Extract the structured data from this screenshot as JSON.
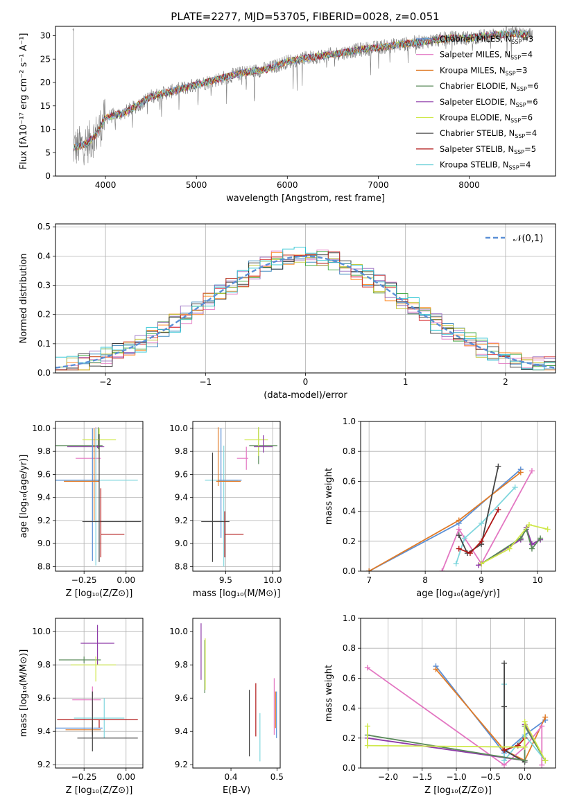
{
  "figure_title": "PLATE=2277, MJD=53705, FIBERID=0028, z=0.051",
  "colors": [
    "#1f77b4",
    "#e377c2",
    "#ff7f0e",
    "#2ca02c",
    "#9467bd",
    "#bcbd22",
    "#222222",
    "#d62728",
    "#17becf"
  ],
  "chart_data": [
    {
      "id": "spectrum",
      "type": "line",
      "xlabel": "wavelength [Angstrom, rest frame]",
      "ylabel": "Flux [fλ10⁻¹⁷ erg cm⁻² s⁻¹ A⁻¹]",
      "xlim": [
        3450,
        8950
      ],
      "ylim": [
        0,
        32
      ],
      "xticks": [
        4000,
        5000,
        6000,
        7000,
        8000
      ],
      "yticks": [
        0,
        5,
        10,
        15,
        20,
        25,
        30
      ],
      "legend_position": "top-right",
      "legend": [
        {
          "label": "Chabrier MILES, N",
          "sub": "SSP",
          "tail": "=3",
          "color": "#5a8fd6"
        },
        {
          "label": "Salpeter MILES, N",
          "sub": "SSP",
          "tail": "=4",
          "color": "#e377c2"
        },
        {
          "label": "Kroupa MILES, N",
          "sub": "SSP",
          "tail": "=3",
          "color": "#e07b28"
        },
        {
          "label": "Chabrier ELODIE, N",
          "sub": "SSP",
          "tail": "=6",
          "color": "#5a8a5a"
        },
        {
          "label": "Salpeter ELODIE, N",
          "sub": "SSP",
          "tail": "=6",
          "color": "#8e3aa8"
        },
        {
          "label": "Kroupa ELODIE, N",
          "sub": "SSP",
          "tail": "=6",
          "color": "#cfe84a"
        },
        {
          "label": "Chabrier STELIB, N",
          "sub": "SSP",
          "tail": "=4",
          "color": "#444444"
        },
        {
          "label": "Salpeter STELIB, N",
          "sub": "SSP",
          "tail": "=5",
          "color": "#b01515"
        },
        {
          "label": "Kroupa STELIB, N",
          "sub": "SSP",
          "tail": "=4",
          "color": "#7fd6dd"
        }
      ],
      "continuum": [
        [
          3650,
          6
        ],
        [
          3800,
          7
        ],
        [
          3900,
          9
        ],
        [
          4000,
          12.5
        ],
        [
          4200,
          13.5
        ],
        [
          4300,
          14.5
        ],
        [
          4500,
          17
        ],
        [
          4800,
          18.5
        ],
        [
          5000,
          19.5
        ],
        [
          5200,
          20.5
        ],
        [
          5500,
          22
        ],
        [
          5800,
          23
        ],
        [
          6000,
          24.5
        ],
        [
          6300,
          25.5
        ],
        [
          6500,
          26
        ],
        [
          6800,
          27
        ],
        [
          7000,
          27.5
        ],
        [
          7200,
          28
        ],
        [
          7400,
          28.5
        ],
        [
          7600,
          29
        ],
        [
          7800,
          29.5
        ],
        [
          8000,
          29.5
        ],
        [
          8200,
          30
        ],
        [
          8500,
          30.5
        ],
        [
          8700,
          30
        ]
      ]
    },
    {
      "id": "residual_hist",
      "type": "histogram",
      "xlabel": "(data-model)/error",
      "ylabel": "Normed distribution",
      "xlim": [
        -2.5,
        2.5
      ],
      "ylim": [
        0,
        0.51
      ],
      "xticks": [
        -2,
        -1,
        0,
        1,
        2
      ],
      "yticks": [
        0.0,
        0.1,
        0.2,
        0.3,
        0.4,
        0.5
      ],
      "grid": true,
      "legend_position": "top-right",
      "reference_curve": {
        "label": "𝒩(0,1)",
        "mean": 0,
        "sigma": 1
      }
    },
    {
      "id": "age_vs_Z",
      "type": "errorbar",
      "xlabel": "Z [log₁₀(Z/Z⊙)]",
      "ylabel": "age  [log₁₀(age/yr)]",
      "xlim": [
        -0.42,
        0.1
      ],
      "ylim": [
        8.76,
        10.06
      ],
      "xticks": [
        -0.25,
        0.0
      ],
      "yticks": [
        8.8,
        9.0,
        9.2,
        9.4,
        9.6,
        9.8,
        10.0
      ],
      "grid": true,
      "points": [
        {
          "x": -0.165,
          "x_err": [
            0.255,
            0.025
          ],
          "y": 9.85,
          "y_err": [
            0.03,
            0.16
          ],
          "color": "#5a8a5a"
        },
        {
          "x": -0.16,
          "x_err": [
            0.1,
            0.1
          ],
          "y": 9.9,
          "y_err": [
            0.2,
            0.1
          ],
          "color": "#cfe84a"
        },
        {
          "x": -0.17,
          "x_err": [
            0.18,
            0.04
          ],
          "y": 9.84,
          "y_err": [
            0.01,
            0.01
          ],
          "color": "#8e3aa8"
        },
        {
          "x": -0.18,
          "x_err": [
            0.12,
            0.03
          ],
          "y": 9.74,
          "y_err": [
            0.21,
            0.27
          ],
          "color": "#e377c2"
        },
        {
          "x": -0.18,
          "x_err": [
            0.26,
            0.25
          ],
          "y": 9.55,
          "y_err": [
            0.74,
            0.45
          ],
          "color": "#7fd6dd"
        },
        {
          "x": -0.2,
          "x_err": [
            0.24,
            0.04
          ],
          "y": 9.55,
          "y_err": [
            0.7,
            0.45
          ],
          "color": "#5a8fd6"
        },
        {
          "x": -0.19,
          "x_err": [
            0.18,
            0.03
          ],
          "y": 9.54,
          "y_err": [
            0.34,
            0.46
          ],
          "color": "#e07b28"
        },
        {
          "x": -0.16,
          "x_err": [
            0.1,
            0.25
          ],
          "y": 9.19,
          "y_err": [
            0.35,
            0.76
          ],
          "color": "#444444"
        },
        {
          "x": -0.15,
          "x_err": [
            0.0,
            0.14
          ],
          "y": 9.08,
          "y_err": [
            0.2,
            0.4
          ],
          "color": "#b01515"
        }
      ]
    },
    {
      "id": "age_vs_mass",
      "type": "errorbar",
      "xlabel": "mass [log₁₀(M/M⊙)]",
      "ylabel": "",
      "xlim": [
        9.15,
        10.08
      ],
      "ylim": [
        8.76,
        10.06
      ],
      "xticks": [
        9.5,
        10.0
      ],
      "yticks": [
        8.8,
        9.0,
        9.2,
        9.4,
        9.6,
        9.8,
        10.0
      ],
      "grid": true,
      "points": [
        {
          "x": 9.85,
          "x_err": [
            0.1,
            0.2
          ],
          "y": 9.85,
          "y_err": [
            0.16,
            0.16
          ],
          "color": "#5a8a5a"
        },
        {
          "x": 9.85,
          "x_err": [
            0.15,
            0.1
          ],
          "y": 9.9,
          "y_err": [
            0.14,
            0.11
          ],
          "color": "#cfe84a"
        },
        {
          "x": 9.9,
          "x_err": [
            0.1,
            0.1
          ],
          "y": 9.84,
          "y_err": [
            0.05,
            0.1
          ],
          "color": "#8e3aa8"
        },
        {
          "x": 9.72,
          "x_err": [
            0.1,
            0.02
          ],
          "y": 9.74,
          "y_err": [
            0.1,
            0.1
          ],
          "color": "#e377c2"
        },
        {
          "x": 9.48,
          "x_err": [
            0.2,
            0.15
          ],
          "y": 9.55,
          "y_err": [
            0.75,
            0.3
          ],
          "color": "#7fd6dd"
        },
        {
          "x": 9.45,
          "x_err": [
            0.03,
            0.22
          ],
          "y": 9.55,
          "y_err": [
            0.5,
            0.45
          ],
          "color": "#5a8fd6"
        },
        {
          "x": 9.42,
          "x_err": [
            0.02,
            0.24
          ],
          "y": 9.54,
          "y_err": [
            0.04,
            0.47
          ],
          "color": "#e07b28"
        },
        {
          "x": 9.36,
          "x_err": [
            0.12,
            0.18
          ],
          "y": 9.19,
          "y_err": [
            0.35,
            0.6
          ],
          "color": "#444444"
        },
        {
          "x": 9.49,
          "x_err": [
            0.0,
            0.2
          ],
          "y": 9.08,
          "y_err": [
            0.2,
            0.2
          ],
          "color": "#b01515"
        }
      ]
    },
    {
      "id": "mass_weight_vs_age",
      "type": "line",
      "xlabel": "age  [log₁₀(age/yr)]",
      "ylabel": "mass weight",
      "xlim": [
        6.85,
        10.32
      ],
      "ylim": [
        0,
        1.0
      ],
      "xticks": [
        7,
        8,
        9,
        10
      ],
      "yticks": [
        0.0,
        0.2,
        0.4,
        0.6,
        0.8,
        1.0
      ],
      "grid": true,
      "series": [
        {
          "color": "#5a8fd6",
          "x": [
            7.0,
            8.6,
            9.7
          ],
          "y": [
            0.0,
            0.32,
            0.68
          ]
        },
        {
          "color": "#e07b28",
          "x": [
            7.0,
            8.6,
            9.7
          ],
          "y": [
            0.0,
            0.34,
            0.66
          ]
        },
        {
          "color": "#e377c2",
          "x": [
            8.3,
            8.6,
            9.0,
            9.9
          ],
          "y": [
            0.0,
            0.28,
            0.05,
            0.67
          ]
        },
        {
          "color": "#7fd6dd",
          "x": [
            8.55,
            8.7,
            9.0,
            9.6
          ],
          "y": [
            0.05,
            0.22,
            0.32,
            0.56
          ]
        },
        {
          "color": "#444444",
          "x": [
            8.6,
            8.75,
            9.0,
            9.3
          ],
          "y": [
            0.24,
            0.12,
            0.18,
            0.7
          ]
        },
        {
          "color": "#b01515",
          "x": [
            8.6,
            8.8,
            9.0,
            9.3
          ],
          "y": [
            0.15,
            0.12,
            0.2,
            0.41
          ]
        },
        {
          "color": "#8e3aa8",
          "x": [
            8.95,
            9.7,
            9.8,
            9.9,
            10.05
          ],
          "y": [
            0.04,
            0.21,
            0.29,
            0.18,
            0.21
          ]
        },
        {
          "color": "#5a8a5a",
          "x": [
            9.0,
            9.7,
            9.8,
            9.9,
            10.05
          ],
          "y": [
            0.05,
            0.22,
            0.28,
            0.15,
            0.22
          ]
        },
        {
          "color": "#cfe84a",
          "x": [
            9.0,
            9.5,
            9.85,
            10.18
          ],
          "y": [
            0.05,
            0.15,
            0.31,
            0.28
          ]
        }
      ]
    },
    {
      "id": "mass_vs_Z",
      "type": "errorbar",
      "xlabel": "Z [log₁₀(Z/Z⊙)]",
      "ylabel": "mass [log₁₀(M/M⊙)]",
      "xlim": [
        -0.42,
        0.1
      ],
      "ylim": [
        9.18,
        10.08
      ],
      "xticks": [
        -0.25,
        0.0
      ],
      "yticks": [
        9.2,
        9.4,
        9.6,
        9.8,
        10.0
      ],
      "grid": true,
      "points": [
        {
          "x": -0.17,
          "x_err": [
            0.1,
            0.1
          ],
          "y": 9.93,
          "y_err": [
            0.13,
            0.11
          ],
          "color": "#8e3aa8"
        },
        {
          "x": -0.25,
          "x_err": [
            0.15,
            0.1
          ],
          "y": 9.83,
          "y_err": [
            0.02,
            0.02
          ],
          "color": "#5a8a5a"
        },
        {
          "x": -0.18,
          "x_err": [
            0.15,
            0.12
          ],
          "y": 9.8,
          "y_err": [
            0.1,
            0.05
          ],
          "color": "#cfe84a"
        },
        {
          "x": -0.2,
          "x_err": [
            0.12,
            0.05
          ],
          "y": 9.59,
          "y_err": [
            0.1,
            0.08
          ],
          "color": "#e377c2"
        },
        {
          "x": -0.13,
          "x_err": [
            0.18,
            0.12
          ],
          "y": 9.48,
          "y_err": [
            0.12,
            0.12
          ],
          "color": "#7fd6dd"
        },
        {
          "x": -0.16,
          "x_err": [
            0.25,
            0.23
          ],
          "y": 9.47,
          "y_err": [
            0.05,
            0.0
          ],
          "color": "#b01515"
        },
        {
          "x": -0.2,
          "x_err": [
            0.23,
            0.06
          ],
          "y": 9.42,
          "y_err": [
            0.05,
            0.05
          ],
          "color": "#5a8fd6"
        },
        {
          "x": -0.2,
          "x_err": [
            0.16,
            0.05
          ],
          "y": 9.41,
          "y_err": [
            0.03,
            0.06
          ],
          "color": "#e07b28"
        },
        {
          "x": -0.2,
          "x_err": [
            0.09,
            0.27
          ],
          "y": 9.36,
          "y_err": [
            0.08,
            0.28
          ],
          "color": "#444444"
        }
      ]
    },
    {
      "id": "mass_vs_EBV",
      "type": "errorbar",
      "xlabel": "E(B-V)",
      "ylabel": "",
      "xlim": [
        0.317,
        0.507
      ],
      "ylim": [
        9.18,
        10.08
      ],
      "xticks": [
        0.4,
        0.5
      ],
      "yticks": [
        9.2,
        9.4,
        9.6,
        9.8,
        10.0
      ],
      "grid": false,
      "points": [
        {
          "x": 0.335,
          "x_err": [
            0,
            0
          ],
          "y": 9.88,
          "y_err": [
            0.17,
            0.17
          ],
          "color": "#8e3aa8"
        },
        {
          "x": 0.343,
          "x_err": [
            0,
            0
          ],
          "y": 9.8,
          "y_err": [
            0.17,
            0.15
          ],
          "color": "#5a8a5a"
        },
        {
          "x": 0.344,
          "x_err": [
            0,
            0
          ],
          "y": 9.79,
          "y_err": [
            0.14,
            0.17
          ],
          "color": "#cfe84a"
        },
        {
          "x": 0.44,
          "x_err": [
            0,
            0
          ],
          "y": 9.45,
          "y_err": [
            0.2,
            0.2
          ],
          "color": "#444444"
        },
        {
          "x": 0.454,
          "x_err": [
            0,
            0
          ],
          "y": 9.53,
          "y_err": [
            0.16,
            0.16
          ],
          "color": "#b01515"
        },
        {
          "x": 0.463,
          "x_err": [
            0,
            0
          ],
          "y": 9.37,
          "y_err": [
            0.15,
            0.14
          ],
          "color": "#7fd6dd"
        },
        {
          "x": 0.494,
          "x_err": [
            0,
            0
          ],
          "y": 9.55,
          "y_err": [
            0.17,
            0.17
          ],
          "color": "#e377c2"
        },
        {
          "x": 0.497,
          "x_err": [
            0,
            0
          ],
          "y": 9.53,
          "y_err": [
            0.11,
            0.11
          ],
          "color": "#e07b28"
        },
        {
          "x": 0.499,
          "x_err": [
            0,
            0
          ],
          "y": 9.49,
          "y_err": [
            0.13,
            0.15
          ],
          "color": "#5a8fd6"
        }
      ]
    },
    {
      "id": "mass_weight_vs_Z",
      "type": "line",
      "xlabel": "Z [log₁₀(Z/Z⊙)]",
      "ylabel": "mass weight",
      "xlim": [
        -2.4,
        0.45
      ],
      "ylim": [
        0,
        1.0
      ],
      "xticks": [
        -2.0,
        -1.5,
        -1.0,
        -0.5,
        0.0
      ],
      "yticks": [
        0.0,
        0.2,
        0.4,
        0.6,
        0.8,
        1.0
      ],
      "grid": true,
      "series": [
        {
          "color": "#5a8fd6",
          "x": [
            -1.3,
            -0.3,
            0.0,
            0.3
          ],
          "y": [
            0.68,
            0.1,
            0.22,
            0.32
          ]
        },
        {
          "color": "#e07b28",
          "x": [
            -1.3,
            -0.3,
            0.0,
            0.3
          ],
          "y": [
            0.66,
            0.12,
            0.05,
            0.34
          ]
        },
        {
          "color": "#e377c2",
          "x": [
            -2.3,
            -0.3,
            0.0,
            0.25,
            0.25
          ],
          "y": [
            0.67,
            0.02,
            0.14,
            0.28,
            0.02
          ]
        },
        {
          "color": "#7fd6dd",
          "x": [
            -0.3,
            -0.3,
            0.0,
            0.3
          ],
          "y": [
            0.56,
            0.05,
            0.22,
            0.05
          ]
        },
        {
          "color": "#444444",
          "x": [
            -0.3,
            -0.3,
            -0.3,
            0.0
          ],
          "y": [
            0.7,
            0.41,
            0.12,
            0.04
          ]
        },
        {
          "color": "#b01515",
          "x": [
            -0.3,
            -0.1,
            0.0
          ],
          "y": [
            0.12,
            0.15,
            0.2
          ]
        },
        {
          "color": "#8e3aa8",
          "x": [
            -2.3,
            0.0,
            0.0,
            0.3
          ],
          "y": [
            0.2,
            0.05,
            0.29,
            0.05
          ]
        },
        {
          "color": "#5a8a5a",
          "x": [
            -2.3,
            0.0,
            0.0,
            0.3
          ],
          "y": [
            0.22,
            0.05,
            0.28,
            0.05
          ]
        },
        {
          "color": "#cfe84a",
          "x": [
            -2.3,
            -2.3,
            0.0,
            0.0,
            0.3
          ],
          "y": [
            0.28,
            0.15,
            0.14,
            0.31,
            0.05
          ]
        }
      ]
    }
  ]
}
